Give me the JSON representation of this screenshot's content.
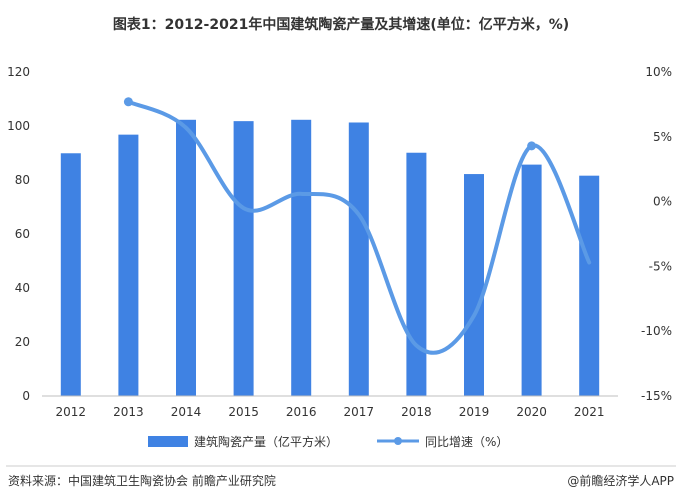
{
  "chart_data": {
    "type": "bar",
    "title": "图表1：2012-2021年中国建筑陶瓷产量及其增速(单位：亿平方米，%)",
    "categories": [
      "2012",
      "2013",
      "2014",
      "2015",
      "2016",
      "2017",
      "2018",
      "2019",
      "2020",
      "2021"
    ],
    "series": [
      {
        "name": "建筑陶瓷产量（亿平方米）",
        "type": "bar",
        "axis": "left",
        "values": [
          89.9,
          96.8,
          102.3,
          101.8,
          102.3,
          101.3,
          90.1,
          82.2,
          85.7,
          81.6
        ]
      },
      {
        "name": "同比增速（%）",
        "type": "line",
        "axis": "right",
        "values": [
          null,
          7.7,
          5.7,
          -0.5,
          0.6,
          -1.0,
          -11.1,
          -8.8,
          4.3,
          -4.7
        ]
      }
    ],
    "left_axis": {
      "ylim": [
        0,
        120
      ],
      "ticks": [
        "0",
        "20",
        "40",
        "60",
        "80",
        "100",
        "120"
      ]
    },
    "right_axis": {
      "ylim": [
        -15,
        10
      ],
      "ticks": [
        "-15%",
        "-10%",
        "-5%",
        "0%",
        "5%",
        "10%"
      ]
    },
    "legend_position": "bottom",
    "grid": false,
    "colors": {
      "bar": "#3f82e3",
      "line": "#5b9ae6"
    }
  },
  "footer": {
    "source": "资料来源：中国建筑卫生陶瓷协会 前瞻产业研究院",
    "brand": "@前瞻经济学人APP"
  }
}
